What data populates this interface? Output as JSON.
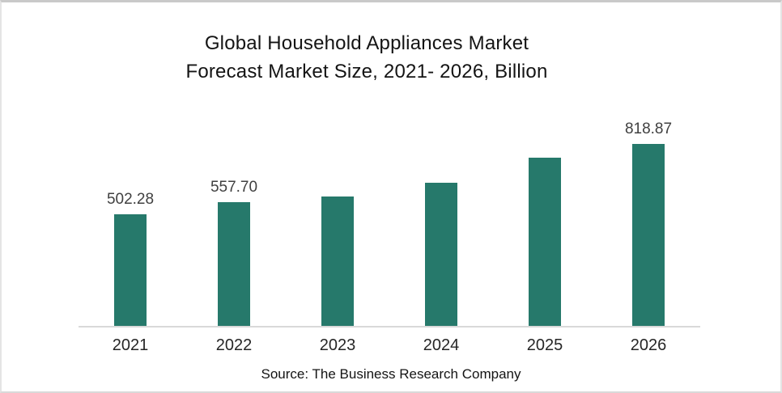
{
  "page": {
    "source_note": "Source: The Business Research Company"
  },
  "chart_data": {
    "type": "bar",
    "title": "Global Household Appliances Market Forecast Market Size, 2021- 2026, Billion",
    "title_lines": [
      "Global Household Appliances Market",
      "Forecast Market Size, 2021- 2026, Billion"
    ],
    "categories": [
      "2021",
      "2022",
      "2023",
      "2024",
      "2025",
      "2026"
    ],
    "values": [
      502.28,
      557.7,
      582,
      644,
      757,
      818.87
    ],
    "data_labels": [
      "502.28",
      "557.70",
      "",
      "",
      "",
      "818.87"
    ],
    "xlabel": "",
    "ylabel": "",
    "ylim": [
      0,
      900
    ],
    "grid": false,
    "legend": "none",
    "bar_color": "#26796B",
    "axis_line_color": "#D9D9D9",
    "data_label_color": "#404040",
    "tick_label_color": "#262626"
  }
}
